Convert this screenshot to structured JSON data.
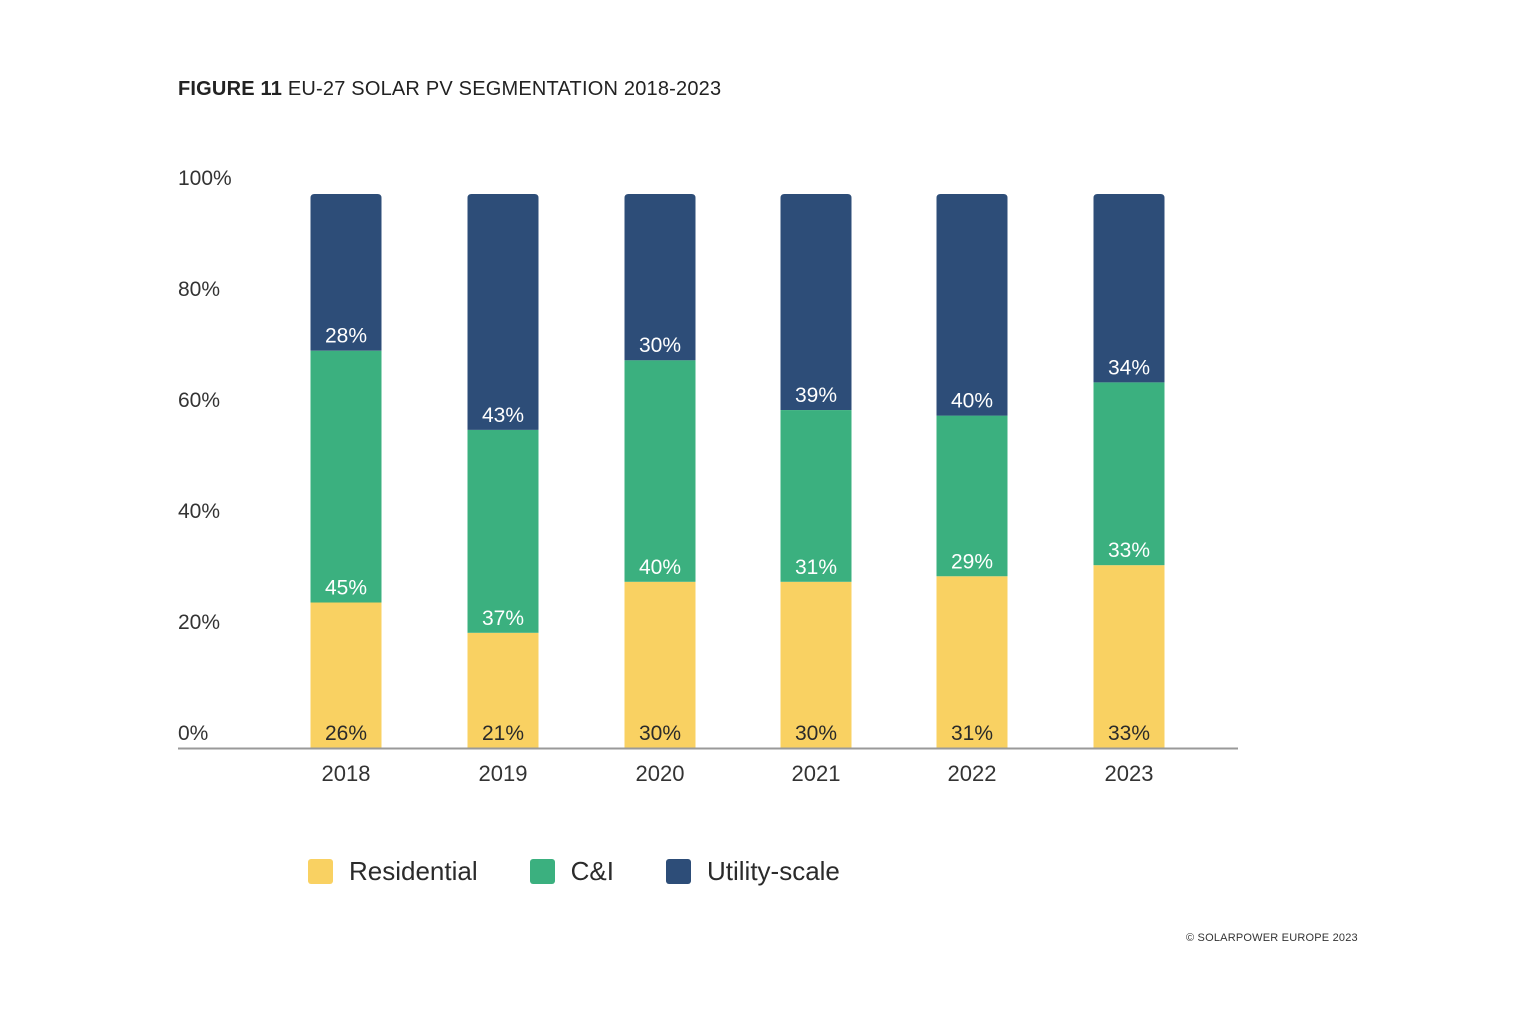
{
  "title": {
    "figure": "FIGURE 11",
    "text": "EU-27 SOLAR PV SEGMENTATION 2018-2023"
  },
  "credit": "© SOLARPOWER EUROPE 2023",
  "colors": {
    "residential": "#f9d162",
    "ci": "#3bb07f",
    "utility": "#2d4d78",
    "axis": "#999999"
  },
  "chart_data": {
    "type": "bar",
    "stacked": true,
    "title": "EU-27 SOLAR PV SEGMENTATION 2018-2023",
    "categories": [
      "2018",
      "2019",
      "2020",
      "2021",
      "2022",
      "2023"
    ],
    "series": [
      {
        "name": "Residential",
        "values": [
          26,
          21,
          30,
          30,
          31,
          33
        ],
        "labels": [
          "26%",
          "21%",
          "30%",
          "30%",
          "31%",
          "33%"
        ]
      },
      {
        "name": "C&I",
        "values": [
          45,
          37,
          40,
          31,
          29,
          33
        ],
        "labels": [
          "45%",
          "37%",
          "40%",
          "31%",
          "29%",
          "33%"
        ]
      },
      {
        "name": "Utility-scale",
        "values": [
          28,
          43,
          30,
          39,
          40,
          34
        ],
        "labels": [
          "28%",
          "43%",
          "30%",
          "39%",
          "40%",
          "34%"
        ]
      }
    ],
    "ylim": [
      0,
      100
    ],
    "yticks": [
      "0%",
      "20%",
      "40%",
      "60%",
      "80%",
      "100%"
    ],
    "grid": false,
    "legend": "bottom"
  }
}
